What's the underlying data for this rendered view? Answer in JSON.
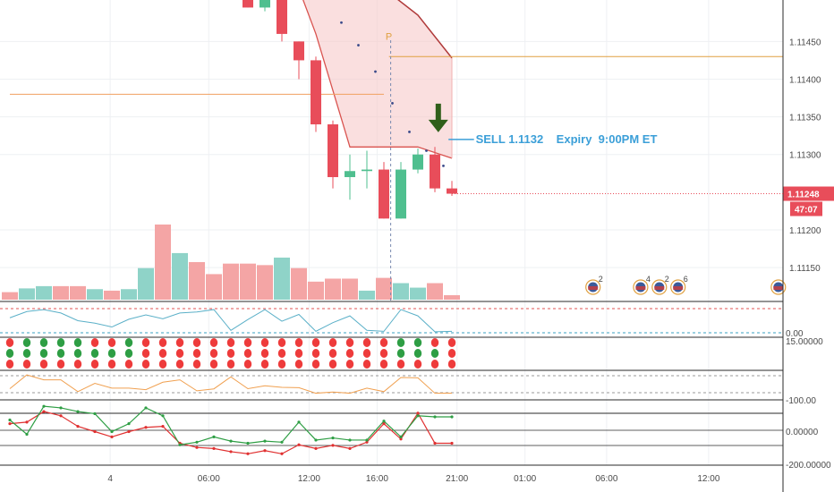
{
  "chart_data": {
    "type": "candlestick",
    "price_axis": {
      "range": [
        1.11105,
        1.11505
      ],
      "ticks": [
        "1.11450",
        "1.11400",
        "1.11350",
        "1.11300",
        "1.11200",
        "1.11150"
      ],
      "tick_values": [
        1.1145,
        1.114,
        1.1135,
        1.113,
        1.112,
        1.1115
      ],
      "current_price": "1.11248",
      "current_price_value": 1.11248,
      "countdown": "47:07"
    },
    "time_axis": {
      "labels": [
        "4",
        "06:00",
        "12:00",
        "16:00",
        "21:00",
        "01:00",
        "06:00",
        "12:00"
      ],
      "label_index": [
        5.9,
        11.7,
        17.6,
        21.6,
        26.3,
        30.3,
        35.1,
        41.1
      ]
    },
    "candles": [
      {
        "i": 14,
        "o": 1.11545,
        "h": 1.1156,
        "l": 1.11495,
        "c": 1.11495,
        "dir": "down"
      },
      {
        "i": 15,
        "o": 1.11495,
        "h": 1.1152,
        "l": 1.1149,
        "c": 1.11505,
        "dir": "up"
      },
      {
        "i": 16,
        "o": 1.11525,
        "h": 1.11545,
        "l": 1.1145,
        "c": 1.1146,
        "dir": "down"
      },
      {
        "i": 17,
        "o": 1.1145,
        "h": 1.1145,
        "l": 1.114,
        "c": 1.11425,
        "dir": "down"
      },
      {
        "i": 18,
        "o": 1.11425,
        "h": 1.1143,
        "l": 1.1133,
        "c": 1.1134,
        "dir": "down"
      },
      {
        "i": 19,
        "o": 1.1134,
        "h": 1.11345,
        "l": 1.11255,
        "c": 1.1127,
        "dir": "down"
      },
      {
        "i": 20,
        "o": 1.1127,
        "h": 1.113,
        "l": 1.1124,
        "c": 1.11278,
        "dir": "up"
      },
      {
        "i": 21,
        "o": 1.11278,
        "h": 1.11305,
        "l": 1.11255,
        "c": 1.1128,
        "dir": "up"
      },
      {
        "i": 22,
        "o": 1.1128,
        "h": 1.1129,
        "l": 1.11215,
        "c": 1.11215,
        "dir": "down"
      },
      {
        "i": 23,
        "o": 1.11215,
        "h": 1.1129,
        "l": 1.11215,
        "c": 1.1128,
        "dir": "up"
      },
      {
        "i": 24,
        "o": 1.1128,
        "h": 1.11308,
        "l": 1.11275,
        "c": 1.113,
        "dir": "up"
      },
      {
        "i": 25,
        "o": 1.113,
        "h": 1.1131,
        "l": 1.1125,
        "c": 1.11255,
        "dir": "down"
      },
      {
        "i": 26,
        "o": 1.11255,
        "h": 1.11265,
        "l": 1.11245,
        "c": 1.11248,
        "dir": "down"
      }
    ],
    "volume": {
      "max": 100,
      "values": [
        10,
        15,
        18,
        18,
        18,
        14,
        12,
        14,
        42,
        100,
        62,
        50,
        34,
        48,
        48,
        46,
        56,
        42,
        24,
        28,
        28,
        12,
        29,
        22,
        16,
        22,
        6
      ],
      "dir": [
        "down",
        "up",
        "up",
        "down",
        "down",
        "up",
        "down",
        "up",
        "up",
        "down",
        "up",
        "down",
        "down",
        "down",
        "down",
        "down",
        "up",
        "down",
        "down",
        "down",
        "down",
        "up",
        "down",
        "up",
        "up",
        "down",
        "down"
      ]
    },
    "channel": {
      "upper": [
        [
          14,
          1.1156
        ],
        [
          17,
          1.1156
        ],
        [
          22,
          1.1152
        ],
        [
          24,
          1.11485
        ],
        [
          26,
          1.11428
        ]
      ],
      "lower": [
        [
          14,
          1.1154
        ],
        [
          17,
          1.1152
        ],
        [
          18,
          1.1146
        ],
        [
          20,
          1.1131
        ],
        [
          24,
          1.1131
        ],
        [
          26,
          1.11295
        ]
      ],
      "fill_color": "#f7c9c9",
      "line_color": "#d9534f"
    },
    "levels": [
      {
        "value": 1.1143,
        "from": 22.3,
        "to": 46,
        "color": "#e0a040"
      },
      {
        "value": 1.1138,
        "from": 0,
        "to": 22,
        "color": "#f0a060"
      }
    ],
    "vertical_marker_index": 22.4,
    "dots": [
      [
        19.5,
        1.11475
      ],
      [
        20.5,
        1.11445
      ],
      [
        21.5,
        1.1141
      ],
      [
        22.5,
        1.11368
      ],
      [
        23.5,
        1.1133
      ],
      [
        24.5,
        1.11305
      ],
      [
        25.5,
        1.11285
      ]
    ],
    "p_label": "P",
    "signal": {
      "text": "SELL 1.1132    Expiry  9:00PM ET",
      "price": 1.1132,
      "arrow": "down"
    },
    "events": [
      {
        "i": 34.3,
        "label": "2"
      },
      {
        "i": 37.1,
        "label": "4"
      },
      {
        "i": 38.2,
        "label": "2"
      },
      {
        "i": 39.3,
        "label": "6"
      },
      {
        "i": 45.2,
        "label": ""
      }
    ],
    "indicator1": {
      "levels_text": [
        "0.00"
      ],
      "values": [
        0.62,
        0.88,
        0.96,
        0.82,
        0.5,
        0.4,
        0.24,
        0.56,
        0.74,
        0.58,
        0.82,
        0.86,
        0.96,
        0.1,
        0.55,
        0.96,
        0.48,
        0.76,
        0.06,
        0.42,
        0.7,
        0.1,
        0.06,
        0.96,
        0.7,
        0.04,
        0.06
      ],
      "color": "#5bb0c8"
    },
    "indicator2": {
      "label": "15.00000",
      "rows": 3,
      "pattern": [
        [
          "r",
          "g",
          "g",
          "g",
          "g",
          "r",
          "r",
          "g",
          "r",
          "r",
          "r",
          "r",
          "r",
          "r",
          "r",
          "r",
          "r",
          "r",
          "r",
          "r",
          "r",
          "r",
          "r",
          "g",
          "g",
          "r",
          "r"
        ],
        [
          "g",
          "g",
          "g",
          "g",
          "g",
          "g",
          "g",
          "g",
          "r",
          "r",
          "r",
          "r",
          "r",
          "r",
          "r",
          "r",
          "r",
          "r",
          "r",
          "r",
          "r",
          "r",
          "r",
          "g",
          "g",
          "g",
          "r"
        ],
        [
          "r",
          "r",
          "r",
          "r",
          "r",
          "r",
          "r",
          "r",
          "r",
          "r",
          "r",
          "r",
          "r",
          "r",
          "r",
          "r",
          "r",
          "r",
          "r",
          "r",
          "r",
          "r",
          "r",
          "r",
          "r",
          "r",
          "r"
        ]
      ]
    },
    "indicator3": {
      "label": "-100.00",
      "values": [
        0.75,
        0.05,
        0.3,
        0.3,
        0.9,
        0.48,
        0.72,
        0.72,
        0.8,
        0.42,
        0.3,
        0.86,
        0.76,
        0.15,
        0.75,
        0.6,
        0.68,
        0.7,
        0.98,
        0.92,
        0.98,
        0.72,
        0.9,
        0.18,
        0.2,
        0.98,
        0.98
      ],
      "color": "#f0a050"
    },
    "indicator4": {
      "ticks": [
        "0.00000",
        "-200.00000"
      ],
      "fast": [
        0.28,
        0.55,
        0.02,
        0.05,
        0.12,
        0.16,
        0.5,
        0.35,
        0.05,
        0.2,
        0.75,
        0.7,
        0.6,
        0.68,
        0.72,
        0.68,
        0.7,
        0.32,
        0.66,
        0.62,
        0.66,
        0.66,
        0.3,
        0.6,
        0.2,
        0.22,
        0.22
      ],
      "slow": [
        0.35,
        0.32,
        0.12,
        0.2,
        0.4,
        0.5,
        0.6,
        0.5,
        0.42,
        0.4,
        0.72,
        0.8,
        0.82,
        0.88,
        0.92,
        0.86,
        0.92,
        0.75,
        0.82,
        0.76,
        0.82,
        0.7,
        0.35,
        0.64,
        0.15,
        0.72,
        0.72
      ],
      "fast_color": "#2e9e44",
      "slow_color": "#e03030"
    },
    "colors": {
      "up": "#4fbf8f",
      "down": "#e84d5a",
      "vol_up": "#8fd3c8",
      "vol_down": "#f4a5a5",
      "grid": "#eef0f3",
      "axis": "#2a2a2a",
      "price_badge": "#e84d5a",
      "arrow": "#2f5f1a",
      "annotation": "#3b9fd8"
    }
  }
}
